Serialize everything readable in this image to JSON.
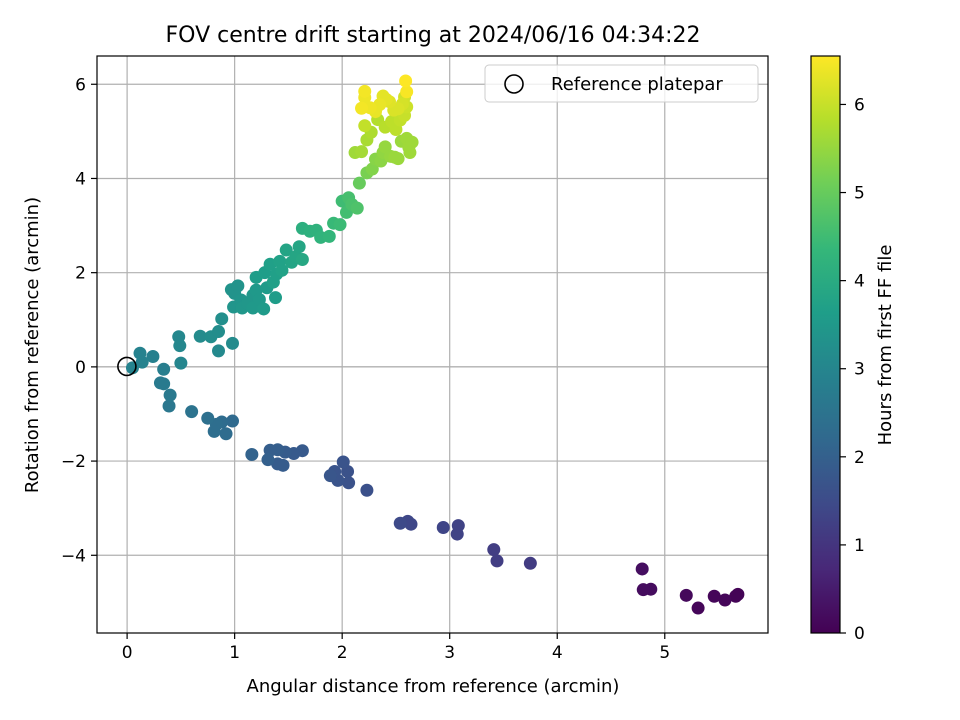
{
  "chart_data": {
    "type": "scatter",
    "title": "FOV centre drift starting at 2024/06/16 04:34:22",
    "xlabel": "Angular distance from reference (arcmin)",
    "ylabel": "Rotation from reference (arcmin)",
    "xlim": [
      -0.28,
      5.96
    ],
    "ylim": [
      -5.65,
      6.6
    ],
    "xticks": [
      0,
      1,
      2,
      3,
      4,
      5
    ],
    "yticks": [
      -4,
      -2,
      0,
      2,
      4,
      6
    ],
    "xtick_labels": [
      "0",
      "1",
      "2",
      "3",
      "4",
      "5"
    ],
    "ytick_labels": [
      "−4",
      "−2",
      "0",
      "2",
      "4",
      "6"
    ],
    "grid": true,
    "legend": {
      "placement": "top-right",
      "entries": [
        "Reference platepar"
      ]
    },
    "reference_point": {
      "x": 0,
      "y": 0,
      "label": "Reference platepar"
    },
    "colorbar": {
      "label": "Hours from first FF file",
      "range": [
        0,
        6.55
      ],
      "ticks": [
        0,
        1,
        2,
        3,
        4,
        5,
        6
      ],
      "tick_labels": [
        "0",
        "1",
        "2",
        "3",
        "4",
        "5",
        "6"
      ],
      "colormap": "viridis"
    },
    "points": [
      [
        5.68,
        -4.83,
        0.05
      ],
      [
        5.66,
        -4.87,
        0.05
      ],
      [
        5.56,
        -4.95,
        0.1
      ],
      [
        5.46,
        -4.87,
        0.1
      ],
      [
        5.31,
        -5.12,
        0.1
      ],
      [
        5.2,
        -4.85,
        0.15
      ],
      [
        4.87,
        -4.72,
        0.2
      ],
      [
        4.8,
        -4.73,
        0.2
      ],
      [
        4.79,
        -4.29,
        0.25
      ],
      [
        3.75,
        -4.17,
        1.15
      ],
      [
        3.44,
        -4.12,
        1.2
      ],
      [
        3.41,
        -3.88,
        1.2
      ],
      [
        3.07,
        -3.55,
        1.3
      ],
      [
        3.08,
        -3.37,
        1.3
      ],
      [
        2.94,
        -3.41,
        1.35
      ],
      [
        2.64,
        -3.34,
        1.4
      ],
      [
        2.61,
        -3.28,
        1.4
      ],
      [
        2.54,
        -3.32,
        1.45
      ],
      [
        2.23,
        -2.62,
        1.6
      ],
      [
        2.06,
        -2.46,
        1.65
      ],
      [
        2.05,
        -2.22,
        1.65
      ],
      [
        2.01,
        -2.02,
        1.7
      ],
      [
        1.96,
        -2.41,
        1.7
      ],
      [
        1.93,
        -2.22,
        1.7
      ],
      [
        1.89,
        -2.31,
        1.75
      ],
      [
        1.63,
        -1.78,
        1.85
      ],
      [
        1.55,
        -1.84,
        1.85
      ],
      [
        1.47,
        -1.81,
        1.9
      ],
      [
        1.45,
        -2.09,
        1.9
      ],
      [
        1.4,
        -2.06,
        1.9
      ],
      [
        1.4,
        -1.76,
        1.95
      ],
      [
        1.33,
        -1.77,
        1.95
      ],
      [
        1.31,
        -1.97,
        2.0
      ],
      [
        1.16,
        -1.86,
        2.05
      ],
      [
        0.98,
        -1.15,
        2.25
      ],
      [
        0.92,
        -1.42,
        2.3
      ],
      [
        0.88,
        -1.17,
        2.3
      ],
      [
        0.83,
        -1.22,
        2.35
      ],
      [
        0.81,
        -1.37,
        2.35
      ],
      [
        0.75,
        -1.09,
        2.4
      ],
      [
        0.6,
        -0.95,
        2.5
      ],
      [
        0.39,
        -0.83,
        2.6
      ],
      [
        0.4,
        -0.6,
        2.65
      ],
      [
        0.34,
        -0.36,
        2.7
      ],
      [
        0.31,
        -0.34,
        2.7
      ],
      [
        0.34,
        -0.05,
        2.8
      ],
      [
        0.24,
        0.22,
        2.85
      ],
      [
        0.14,
        0.1,
        2.9
      ],
      [
        0.12,
        0.29,
        2.9
      ],
      [
        0.05,
        -0.02,
        2.95
      ],
      [
        0.5,
        0.08,
        3.0
      ],
      [
        0.49,
        0.45,
        3.05
      ],
      [
        0.48,
        0.64,
        3.05
      ],
      [
        0.85,
        0.34,
        3.1
      ],
      [
        0.98,
        0.5,
        3.15
      ],
      [
        0.68,
        0.65,
        3.15
      ],
      [
        0.78,
        0.64,
        3.2
      ],
      [
        0.85,
        0.75,
        3.2
      ],
      [
        0.88,
        1.02,
        3.25
      ],
      [
        0.97,
        1.64,
        3.35
      ],
      [
        1.0,
        1.56,
        3.35
      ],
      [
        1.03,
        1.72,
        3.35
      ],
      [
        0.99,
        1.27,
        3.4
      ],
      [
        1.06,
        1.42,
        3.4
      ],
      [
        1.07,
        1.25,
        3.45
      ],
      [
        1.12,
        1.35,
        3.45
      ],
      [
        1.17,
        1.52,
        3.45
      ],
      [
        1.17,
        1.25,
        3.5
      ],
      [
        1.2,
        1.63,
        3.5
      ],
      [
        1.23,
        1.43,
        3.5
      ],
      [
        1.27,
        1.23,
        3.55
      ],
      [
        1.3,
        1.68,
        3.55
      ],
      [
        1.38,
        1.47,
        3.6
      ],
      [
        1.2,
        1.9,
        3.6
      ],
      [
        1.28,
        2.0,
        3.65
      ],
      [
        1.33,
        2.18,
        3.7
      ],
      [
        1.36,
        1.8,
        3.7
      ],
      [
        1.39,
        1.97,
        3.7
      ],
      [
        1.42,
        2.24,
        3.75
      ],
      [
        1.44,
        2.05,
        3.75
      ],
      [
        1.48,
        2.48,
        3.8
      ],
      [
        1.53,
        2.22,
        3.8
      ],
      [
        1.57,
        2.34,
        3.85
      ],
      [
        1.6,
        2.55,
        3.85
      ],
      [
        1.63,
        2.28,
        3.9
      ],
      [
        1.63,
        2.94,
        4.1
      ],
      [
        1.7,
        2.88,
        4.15
      ],
      [
        1.76,
        2.9,
        4.2
      ],
      [
        1.8,
        2.75,
        4.25
      ],
      [
        1.88,
        2.77,
        4.3
      ],
      [
        1.92,
        3.05,
        4.4
      ],
      [
        1.98,
        3.02,
        4.45
      ],
      [
        2.0,
        3.52,
        4.5
      ],
      [
        2.04,
        3.28,
        4.55
      ],
      [
        2.06,
        3.59,
        4.6
      ],
      [
        2.09,
        3.45,
        4.65
      ],
      [
        2.14,
        3.37,
        4.7
      ],
      [
        2.16,
        3.9,
        5.0
      ],
      [
        2.23,
        4.12,
        5.2
      ],
      [
        2.28,
        4.2,
        5.3
      ],
      [
        2.31,
        4.41,
        5.35
      ],
      [
        2.36,
        4.37,
        5.4
      ],
      [
        2.38,
        4.55,
        5.45
      ],
      [
        2.4,
        4.67,
        5.5
      ],
      [
        2.45,
        4.47,
        5.5
      ],
      [
        2.49,
        4.45,
        5.55
      ],
      [
        2.52,
        4.42,
        5.55
      ],
      [
        2.55,
        4.79,
        5.55
      ],
      [
        2.6,
        4.85,
        5.6
      ],
      [
        2.62,
        4.66,
        5.6
      ],
      [
        2.65,
        4.77,
        5.6
      ],
      [
        2.63,
        4.55,
        5.6
      ],
      [
        2.12,
        4.55,
        5.6
      ],
      [
        2.18,
        4.57,
        5.65
      ],
      [
        2.23,
        4.82,
        5.7
      ],
      [
        2.27,
        4.98,
        5.75
      ],
      [
        2.33,
        5.25,
        5.8
      ],
      [
        2.4,
        5.09,
        5.85
      ],
      [
        2.46,
        5.21,
        5.9
      ],
      [
        2.5,
        5.04,
        5.9
      ],
      [
        2.54,
        5.24,
        5.95
      ],
      [
        2.21,
        5.12,
        5.95
      ],
      [
        2.58,
        5.34,
        6.0
      ],
      [
        2.6,
        5.52,
        6.05
      ],
      [
        2.58,
        5.73,
        6.1
      ],
      [
        2.56,
        5.58,
        6.15
      ],
      [
        2.52,
        5.48,
        6.2
      ],
      [
        2.48,
        5.45,
        6.2
      ],
      [
        2.44,
        5.63,
        6.25
      ],
      [
        2.41,
        5.68,
        6.3
      ],
      [
        2.38,
        5.75,
        6.3
      ],
      [
        2.35,
        5.57,
        6.35
      ],
      [
        2.31,
        5.42,
        6.35
      ],
      [
        2.26,
        5.5,
        6.4
      ],
      [
        2.21,
        5.72,
        6.4
      ],
      [
        2.18,
        5.49,
        6.45
      ],
      [
        2.21,
        5.85,
        6.45
      ],
      [
        2.6,
        5.84,
        6.5
      ],
      [
        2.59,
        6.07,
        6.55
      ]
    ]
  },
  "colors": {
    "viridis_stops": [
      "#440154",
      "#482878",
      "#3e4a89",
      "#31688e",
      "#26828e",
      "#1f9e89",
      "#35b779",
      "#6ece58",
      "#b5de2b",
      "#fde725"
    ],
    "grid": "#b0b0b0",
    "axes": "#000000"
  }
}
